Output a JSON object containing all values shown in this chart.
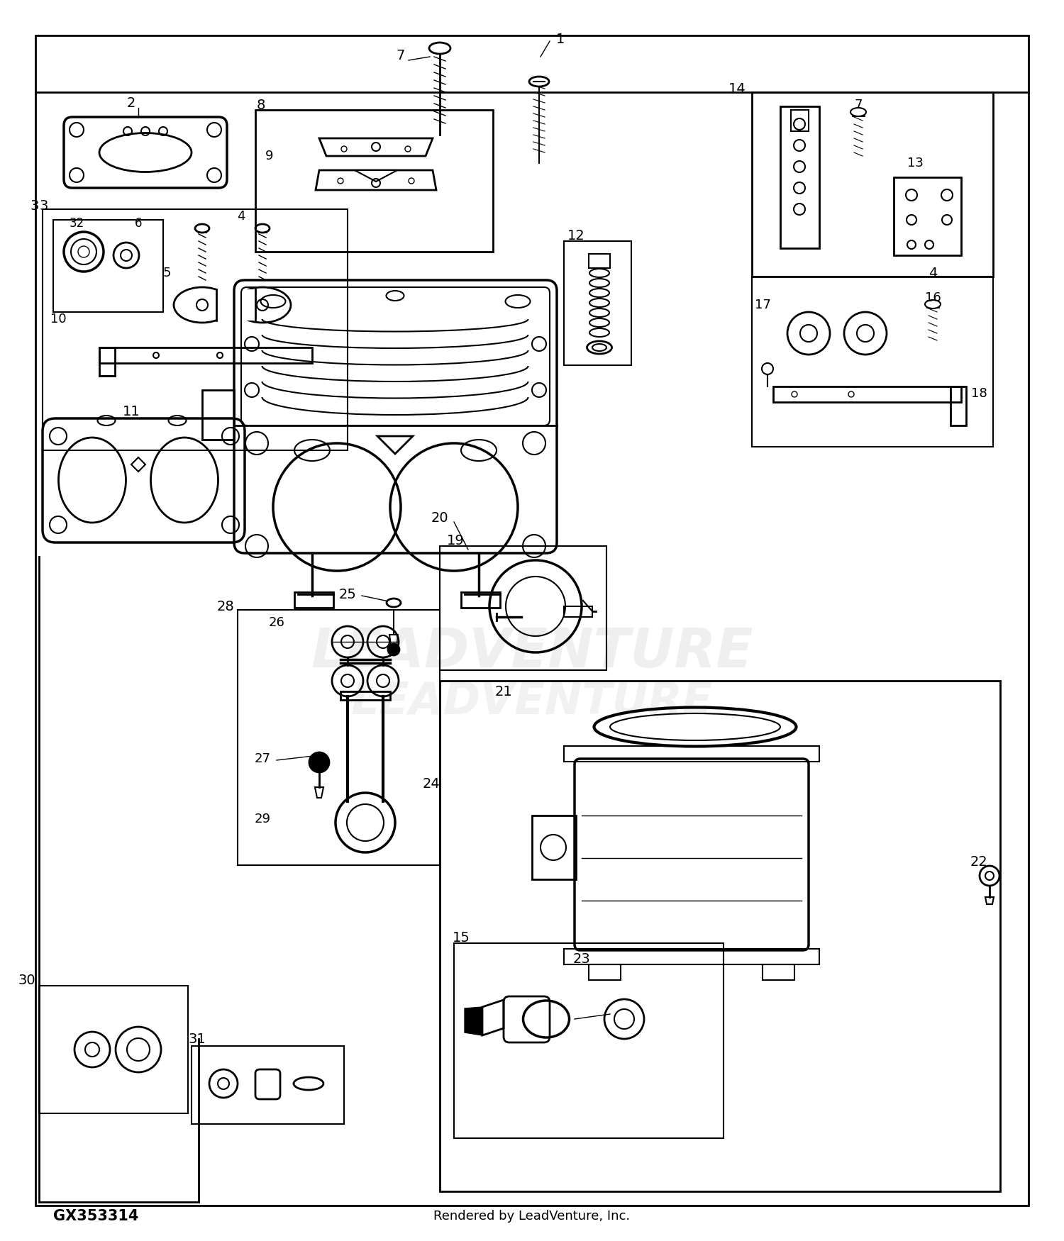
{
  "bg_color": "#ffffff",
  "line_color": "#000000",
  "title_bottom_left": "GX353314",
  "title_bottom_right": "Rendered by LeadVenture, Inc.",
  "watermark": "LEADVENTURE"
}
